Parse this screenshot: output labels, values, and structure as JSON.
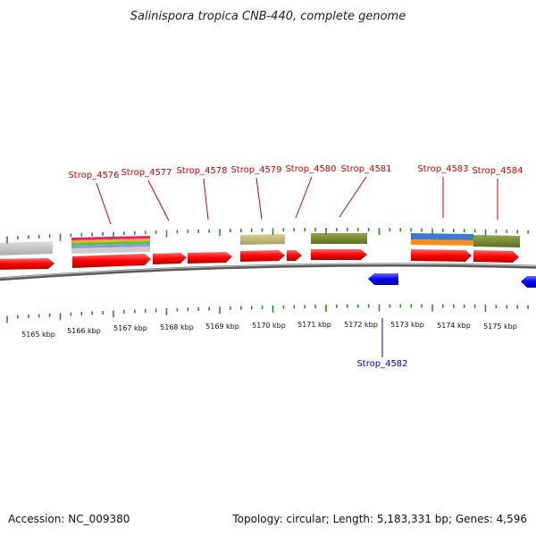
{
  "title": "Salinispora tropica CNB-440, complete genome",
  "footer": {
    "accession": "Accession: NC_009380",
    "topology": "Topology: circular; Length: 5,183,331 bp; Genes: 4,596"
  },
  "colors": {
    "forward": "#ff0000",
    "reverse": "#0000ee",
    "forward_label": "#cc0000",
    "reverse_label": "#0000cc",
    "tick": "#2e8b2e",
    "backbone": "#888888"
  },
  "scale": {
    "labels": [
      "5165 kbp",
      "5166 kbp",
      "5167 kbp",
      "5168 kbp",
      "5169 kbp",
      "5170 kbp",
      "5171 kbp",
      "5172 kbp",
      "5173 kbp",
      "5174 kbp",
      "5175 kbp"
    ]
  },
  "gene_labels": [
    "Strop_4576",
    "Strop_4577",
    "Strop_4578",
    "Strop_4579",
    "Strop_4580",
    "Strop_4581",
    "Strop_4582",
    "Strop_4583",
    "Strop_4584"
  ]
}
